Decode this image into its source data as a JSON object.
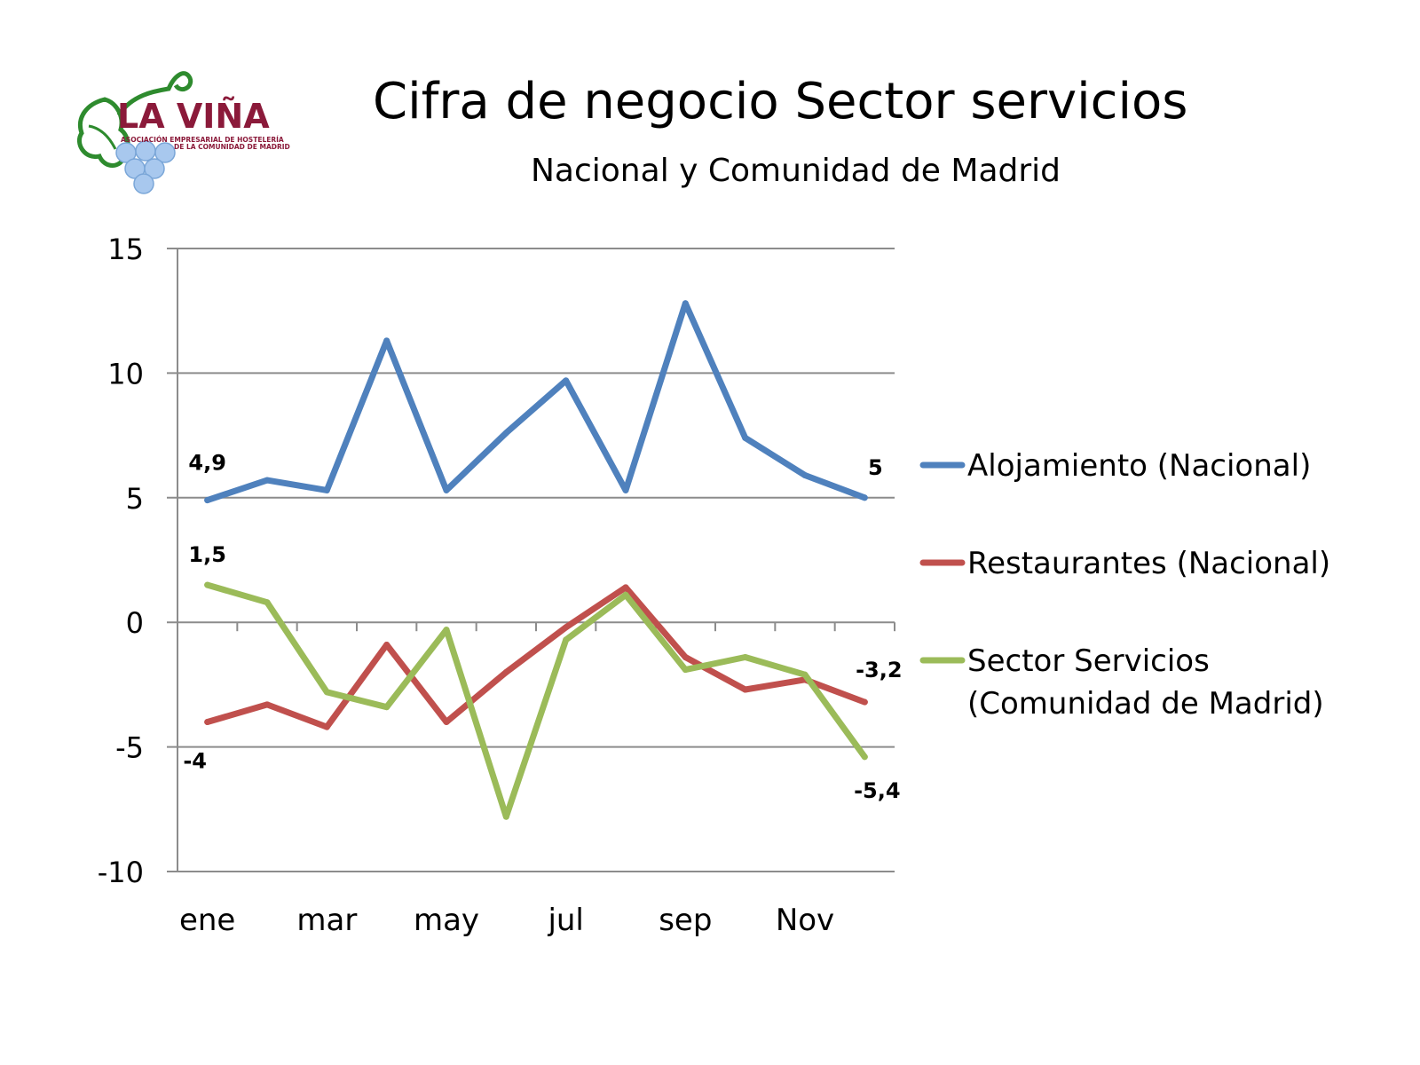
{
  "slide": {
    "title": "Cifra de negocio Sector servicios",
    "subtitle": "Nacional y Comunidad de Madrid"
  },
  "logo": {
    "name": "LA VIÑA",
    "line1": "ASOCIACIÓN EMPRESARIAL DE HOSTELERÍA",
    "line2": "DE LA COMUNIDAD DE MADRID",
    "color_text": "#8b1a3a",
    "color_leaf": "#2e8b2e",
    "color_grapes": "#a8c8ee"
  },
  "chart_data": {
    "type": "line",
    "title": "Cifra de negocio Sector servicios",
    "subtitle": "Nacional y Comunidad de Madrid",
    "x_tick_labels": [
      "ene",
      "mar",
      "may",
      "jul",
      "sep",
      "Nov"
    ],
    "x_count": 12,
    "ylim": [
      -10,
      15
    ],
    "y_ticks": [
      -10,
      -5,
      0,
      5,
      10,
      15
    ],
    "grid": true,
    "legend_position": "right",
    "series": [
      {
        "name": "Alojamiento (Nacional)",
        "color": "#4f81bd",
        "values": [
          4.9,
          5.7,
          5.3,
          11.3,
          5.3,
          7.6,
          9.7,
          5.3,
          12.8,
          7.4,
          5.9,
          5.0
        ],
        "labels": [
          {
            "index": 0,
            "text": "4,9"
          },
          {
            "index": 11,
            "text": "5"
          }
        ]
      },
      {
        "name": "Restaurantes (Nacional)",
        "color": "#c0504d",
        "values": [
          -4.0,
          -3.3,
          -4.2,
          -0.9,
          -4.0,
          -2.0,
          -0.2,
          1.4,
          -1.4,
          -2.7,
          -2.3,
          -3.2
        ],
        "labels": [
          {
            "index": 0,
            "text": "-4"
          },
          {
            "index": 11,
            "text": "-3,2"
          }
        ]
      },
      {
        "name": "Sector Servicios (Comunidad de Madrid)",
        "legend_lines": [
          "Sector Servicios",
          "(Comunidad de Madrid)"
        ],
        "color": "#9bbb59",
        "values": [
          1.5,
          0.8,
          -2.8,
          -3.4,
          -0.3,
          -7.8,
          -0.7,
          1.1,
          -1.9,
          -1.4,
          -2.1,
          -5.4
        ],
        "labels": [
          {
            "index": 0,
            "text": "1,5"
          },
          {
            "index": 11,
            "text": "-5,4"
          }
        ]
      }
    ]
  }
}
